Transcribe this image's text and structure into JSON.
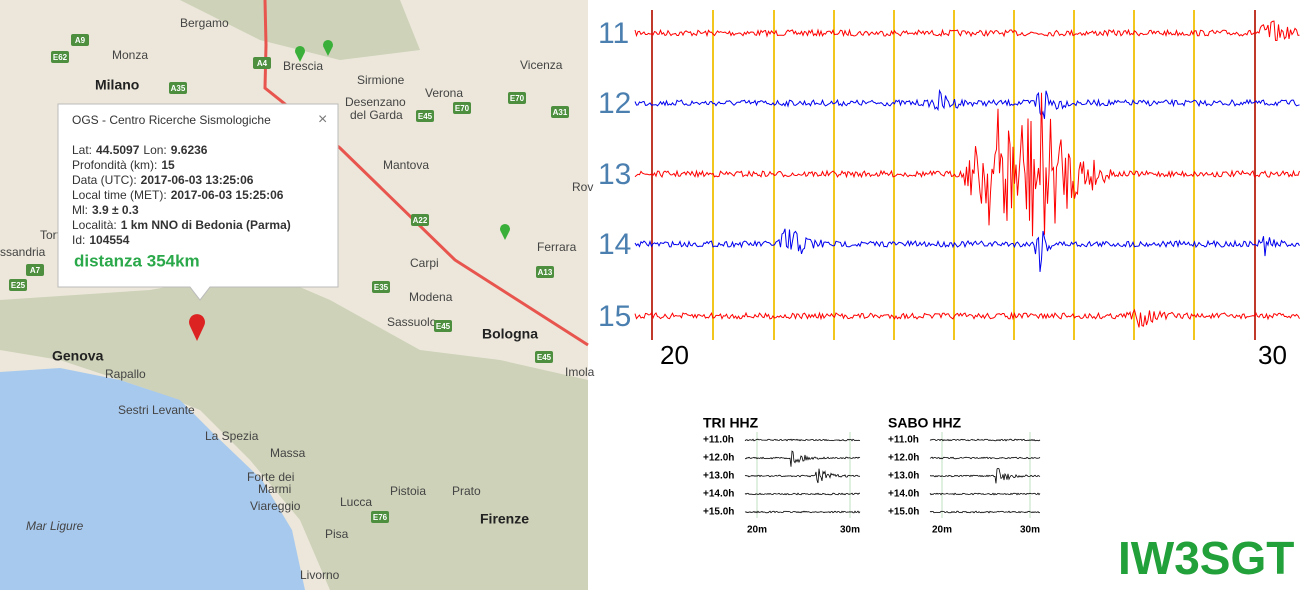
{
  "map": {
    "labels": [
      "Bergamo",
      "Monza",
      "Milano",
      "Brescia",
      "Vicenza",
      "Sirmione",
      "Verona",
      "Desenzano",
      "del Garda",
      "Mantova",
      "Carpi",
      "Modena",
      "Sassuolo",
      "Bologna",
      "Ferrara",
      "Genova",
      "Rapallo",
      "Sestri Levante",
      "La Spezia",
      "Massa",
      "Forte dei",
      "Marmi",
      "Viareggio",
      "Lucca",
      "Pistoia",
      "Prato",
      "Firenze",
      "Pisa",
      "Livorno",
      "Mar Ligure",
      "Imola",
      "Rov",
      "Torto",
      "ssandria"
    ],
    "road_shields": [
      "A9",
      "E62",
      "A35",
      "A4",
      "E70",
      "E70",
      "A31",
      "E45",
      "A22",
      "E35",
      "E45",
      "A13",
      "E45",
      "A7",
      "E25",
      "E76"
    ]
  },
  "popup": {
    "title": "OGS - Centro Ricerche Sismologiche",
    "lines": [
      [
        {
          "text": "Lat:"
        },
        {
          "text": "44.5097",
          "bold": true
        },
        {
          "text": "Lon:"
        },
        {
          "text": "9.6236",
          "bold": true
        }
      ],
      [
        {
          "text": "Profondità (km):"
        },
        {
          "text": "15",
          "bold": true
        }
      ],
      [
        {
          "text": "Data (UTC):"
        },
        {
          "text": "2017-06-03 13:25:06",
          "bold": true
        }
      ],
      [
        {
          "text": "Local time (MET):"
        },
        {
          "text": "2017-06-03 15:25:06",
          "bold": true
        }
      ],
      [
        {
          "text": "Ml:"
        },
        {
          "text": "3.9 ± 0.3",
          "bold": true
        }
      ],
      [
        {
          "text": "Località:"
        },
        {
          "text": "1 km NNO di Bedonia (Parma)",
          "bold": true
        }
      ],
      [
        {
          "text": "Id:"
        },
        {
          "text": "104554",
          "bold": true
        }
      ]
    ],
    "distance": "distanza 354km"
  },
  "helicorder": {
    "hour_labels": [
      "11",
      "12",
      "13",
      "14",
      "15"
    ],
    "minute_labels": [
      "20",
      "30"
    ]
  },
  "panels": [
    {
      "title": "TRI HHZ",
      "rows": [
        "+11.0h",
        "+12.0h",
        "+13.0h",
        "+14.0h",
        "+15.0h"
      ],
      "x_labels": [
        "20m",
        "30m"
      ]
    },
    {
      "title": "SABO HHZ",
      "rows": [
        "+11.0h",
        "+12.0h",
        "+13.0h",
        "+14.0h",
        "+15.0h"
      ],
      "x_labels": [
        "20m",
        "30m"
      ]
    }
  ],
  "callsign": "IW3SGT"
}
